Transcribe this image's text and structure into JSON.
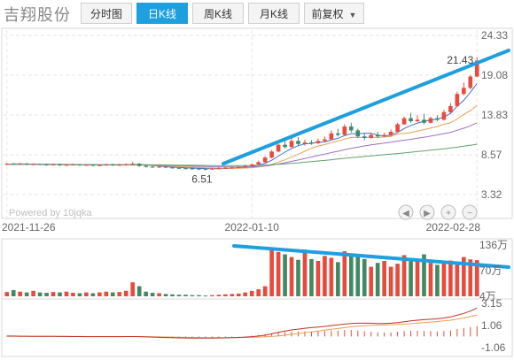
{
  "header": {
    "stock_name": "吉翔股份",
    "tabs": [
      {
        "label": "分时图",
        "active": false
      },
      {
        "label": "日K线",
        "active": true
      },
      {
        "label": "周K线",
        "active": false
      },
      {
        "label": "月K线",
        "active": false
      },
      {
        "label": "前复权",
        "active": false,
        "dropdown": true
      }
    ]
  },
  "colors": {
    "up": "#e84a3c",
    "down": "#3f8a62",
    "ma5": "#3f6fd8",
    "ma10": "#e8a050",
    "ma20": "#a070c0",
    "ma60": "#60a070",
    "trend_line": "#1e9fe0",
    "grid": "#e6e6e6",
    "axis_text": "#666666"
  },
  "watermark": "Powered by 10jqka",
  "chart_data": {
    "type": "candlestick",
    "price_axis": {
      "ticks": [
        "24.33",
        "19.08",
        "13.83",
        "8.57",
        "3.32"
      ],
      "range": [
        3.32,
        24.33
      ]
    },
    "x_labels": [
      "2021-11-26",
      "2022-01-10",
      "2022-02-28"
    ],
    "annotations": {
      "high_label": "21.43",
      "low_label": "6.51"
    },
    "volume_axis": {
      "ticks": [
        "136万",
        "70万",
        "4万"
      ],
      "range": [
        4,
        136
      ],
      "unit": "万"
    },
    "macd_axis": {
      "ticks": [
        "3.15",
        "1.06",
        "-1.06"
      ],
      "range": [
        -1.06,
        3.15
      ]
    },
    "candles": [
      [
        7.3,
        7.4,
        7.45,
        7.2
      ],
      [
        7.4,
        7.35,
        7.5,
        7.3
      ],
      [
        7.35,
        7.4,
        7.5,
        7.3
      ],
      [
        7.4,
        7.3,
        7.5,
        7.25
      ],
      [
        7.3,
        7.35,
        7.45,
        7.2
      ],
      [
        7.35,
        7.3,
        7.4,
        7.2
      ],
      [
        7.3,
        7.25,
        7.4,
        7.15
      ],
      [
        7.25,
        7.3,
        7.4,
        7.2
      ],
      [
        7.3,
        7.2,
        7.4,
        7.1
      ],
      [
        7.2,
        7.25,
        7.35,
        7.1
      ],
      [
        7.25,
        7.3,
        7.4,
        7.2
      ],
      [
        7.3,
        7.2,
        7.35,
        7.1
      ],
      [
        7.2,
        7.25,
        7.3,
        7.1
      ],
      [
        7.25,
        7.15,
        7.3,
        7.05
      ],
      [
        7.15,
        7.2,
        7.3,
        7.1
      ],
      [
        7.2,
        7.3,
        7.4,
        7.15
      ],
      [
        7.3,
        7.2,
        7.4,
        7.1
      ],
      [
        7.2,
        7.25,
        7.4,
        7.15
      ],
      [
        7.25,
        7.3,
        7.45,
        7.2
      ],
      [
        7.3,
        7.4,
        7.6,
        7.25
      ],
      [
        7.4,
        7.1,
        7.5,
        7.0
      ],
      [
        7.1,
        7.0,
        7.2,
        6.9
      ],
      [
        7.0,
        6.95,
        7.1,
        6.85
      ],
      [
        6.95,
        7.0,
        7.1,
        6.85
      ],
      [
        7.0,
        6.9,
        7.05,
        6.8
      ],
      [
        6.9,
        6.85,
        7.0,
        6.75
      ],
      [
        6.85,
        6.8,
        6.95,
        6.7
      ],
      [
        6.8,
        6.78,
        6.9,
        6.65
      ],
      [
        6.78,
        6.75,
        6.85,
        6.6
      ],
      [
        6.75,
        6.72,
        6.85,
        6.55
      ],
      [
        6.72,
        6.7,
        6.8,
        6.51
      ],
      [
        6.7,
        6.75,
        6.85,
        6.6
      ],
      [
        6.75,
        6.8,
        6.95,
        6.65
      ],
      [
        6.8,
        6.85,
        7.0,
        6.7
      ],
      [
        6.85,
        6.9,
        7.05,
        6.75
      ],
      [
        6.9,
        6.95,
        7.1,
        6.8
      ],
      [
        6.95,
        7.1,
        7.2,
        6.9
      ],
      [
        7.1,
        7.3,
        7.4,
        7.0
      ],
      [
        7.3,
        7.6,
        7.8,
        7.2
      ],
      [
        7.6,
        8.2,
        8.4,
        7.5
      ],
      [
        8.2,
        9.0,
        9.2,
        8.1
      ],
      [
        9.0,
        9.9,
        10.0,
        8.9
      ],
      [
        9.9,
        9.6,
        10.5,
        9.4
      ],
      [
        9.6,
        10.4,
        10.8,
        9.5
      ],
      [
        10.4,
        10.0,
        10.9,
        9.8
      ],
      [
        10.0,
        10.2,
        10.6,
        9.8
      ],
      [
        10.2,
        10.1,
        10.5,
        9.9
      ],
      [
        10.1,
        10.4,
        10.7,
        10.0
      ],
      [
        10.4,
        10.6,
        11.0,
        10.2
      ],
      [
        10.6,
        11.4,
        11.8,
        10.5
      ],
      [
        11.4,
        11.2,
        12.0,
        11.0
      ],
      [
        11.2,
        12.3,
        12.6,
        11.1
      ],
      [
        12.3,
        11.8,
        12.8,
        11.5
      ],
      [
        11.8,
        11.0,
        12.0,
        10.8
      ],
      [
        11.0,
        10.8,
        11.4,
        10.5
      ],
      [
        10.8,
        11.2,
        11.5,
        10.7
      ],
      [
        11.2,
        11.0,
        11.6,
        10.8
      ],
      [
        11.0,
        11.2,
        11.5,
        10.9
      ],
      [
        11.2,
        11.6,
        11.9,
        11.0
      ],
      [
        11.6,
        12.6,
        12.8,
        11.5
      ],
      [
        12.6,
        13.4,
        13.6,
        12.5
      ],
      [
        13.4,
        13.0,
        14.1,
        12.8
      ],
      [
        13.0,
        13.2,
        13.8,
        12.9
      ],
      [
        13.2,
        12.8,
        14.0,
        12.6
      ],
      [
        12.8,
        13.4,
        13.6,
        12.7
      ],
      [
        13.4,
        13.2,
        13.8,
        13.0
      ],
      [
        13.2,
        14.2,
        14.5,
        13.1
      ],
      [
        14.2,
        15.0,
        15.4,
        14.0
      ],
      [
        15.0,
        16.6,
        16.9,
        14.9
      ],
      [
        16.6,
        17.4,
        18.1,
        16.4
      ],
      [
        17.4,
        18.9,
        19.1,
        17.2
      ],
      [
        18.9,
        21.0,
        21.43,
        18.8
      ]
    ],
    "moving_averages": [
      {
        "name": "MA5",
        "color": "#3f6fd8",
        "values": [
          7.35,
          7.36,
          7.37,
          7.36,
          7.35,
          7.34,
          7.32,
          7.3,
          7.28,
          7.27,
          7.26,
          7.26,
          7.25,
          7.24,
          7.22,
          7.22,
          7.23,
          7.23,
          7.25,
          7.27,
          7.25,
          7.21,
          7.14,
          7.09,
          7.0,
          6.94,
          6.9,
          6.86,
          6.82,
          6.78,
          6.75,
          6.74,
          6.75,
          6.76,
          6.8,
          6.85,
          6.92,
          7.03,
          7.19,
          7.45,
          7.85,
          8.4,
          8.92,
          9.4,
          9.78,
          10.02,
          10.08,
          10.22,
          10.26,
          10.54,
          10.74,
          11.1,
          11.34,
          11.34,
          11.42,
          11.42,
          11.16,
          11.04,
          11.16,
          11.52,
          12.04,
          12.44,
          12.76,
          13.0,
          13.16,
          13.28,
          13.56,
          14.04,
          14.98,
          15.76,
          16.82,
          17.98
        ]
      },
      {
        "name": "MA10",
        "color": "#e8a050",
        "values": [
          7.34,
          7.35,
          7.35,
          7.35,
          7.34,
          7.33,
          7.32,
          7.31,
          7.3,
          7.29,
          7.28,
          7.27,
          7.26,
          7.25,
          7.24,
          7.23,
          7.22,
          7.22,
          7.22,
          7.23,
          7.22,
          7.2,
          7.17,
          7.14,
          7.11,
          7.07,
          7.02,
          6.98,
          6.94,
          6.9,
          6.86,
          6.83,
          6.8,
          6.79,
          6.79,
          6.8,
          6.82,
          6.87,
          6.96,
          7.1,
          7.3,
          7.59,
          7.91,
          8.27,
          8.64,
          9.04,
          9.44,
          9.73,
          9.92,
          10.2,
          10.38,
          10.65,
          10.86,
          10.88,
          10.86,
          10.86,
          10.86,
          10.92,
          11.0,
          11.31,
          11.4,
          11.5,
          11.7,
          11.9,
          12.1,
          12.3,
          12.6,
          12.8,
          13.3,
          13.9,
          14.4,
          15.1
        ]
      },
      {
        "name": "MA20",
        "color": "#a070c0",
        "values": [
          7.32,
          7.32,
          7.33,
          7.33,
          7.33,
          7.32,
          7.32,
          7.31,
          7.31,
          7.3,
          7.3,
          7.29,
          7.29,
          7.28,
          7.28,
          7.27,
          7.27,
          7.26,
          7.26,
          7.26,
          7.25,
          7.24,
          7.23,
          7.22,
          7.2,
          7.18,
          7.15,
          7.12,
          7.09,
          7.06,
          7.03,
          7.0,
          6.98,
          6.97,
          6.96,
          6.96,
          6.97,
          6.99,
          7.03,
          7.1,
          7.2,
          7.35,
          7.52,
          7.7,
          7.88,
          8.07,
          8.28,
          8.48,
          8.66,
          8.86,
          9.04,
          9.24,
          9.42,
          9.58,
          9.74,
          9.88,
          10.0,
          10.12,
          10.24,
          10.38,
          10.5,
          10.62,
          10.76,
          10.9,
          11.04,
          11.2,
          11.36,
          11.54,
          11.8,
          12.08,
          12.4,
          12.8
        ]
      },
      {
        "name": "MA60",
        "color": "#60a070",
        "values": [
          7.3,
          7.3,
          7.3,
          7.3,
          7.3,
          7.29,
          7.29,
          7.29,
          7.29,
          7.28,
          7.28,
          7.28,
          7.28,
          7.27,
          7.27,
          7.27,
          7.26,
          7.26,
          7.26,
          7.25,
          7.25,
          7.25,
          7.24,
          7.24,
          7.23,
          7.22,
          7.21,
          7.2,
          7.19,
          7.18,
          7.17,
          7.16,
          7.15,
          7.15,
          7.15,
          7.15,
          7.16,
          7.17,
          7.19,
          7.22,
          7.26,
          7.31,
          7.37,
          7.44,
          7.51,
          7.59,
          7.67,
          7.75,
          7.83,
          7.92,
          8.01,
          8.1,
          8.19,
          8.27,
          8.35,
          8.43,
          8.51,
          8.58,
          8.66,
          8.74,
          8.82,
          8.91,
          9.0,
          9.09,
          9.18,
          9.27,
          9.37,
          9.47,
          9.58,
          9.7,
          9.83,
          9.97
        ]
      }
    ],
    "volume": [
      15,
      20,
      16,
      14,
      18,
      14,
      13,
      15,
      14,
      16,
      13,
      12,
      14,
      12,
      14,
      16,
      14,
      15,
      18,
      40,
      30,
      16,
      13,
      12,
      10,
      9,
      8,
      8,
      7,
      7,
      6,
      7,
      8,
      9,
      10,
      11,
      14,
      18,
      22,
      30,
      130,
      118,
      112,
      105,
      98,
      124,
      100,
      95,
      108,
      103,
      92,
      120,
      110,
      108,
      100,
      80,
      90,
      95,
      80,
      88,
      110,
      94,
      100,
      112,
      90,
      85,
      94,
      96,
      92,
      105,
      99,
      97
    ],
    "macd": {
      "hist": [
        0.05,
        0.05,
        0.04,
        0.03,
        0.03,
        0.02,
        0.01,
        0,
        -0.01,
        -0.01,
        -0.02,
        -0.03,
        -0.03,
        -0.04,
        -0.04,
        -0.03,
        -0.03,
        -0.02,
        -0.02,
        -0.01,
        -0.05,
        -0.08,
        -0.1,
        -0.12,
        -0.14,
        -0.15,
        -0.16,
        -0.16,
        -0.15,
        -0.14,
        -0.13,
        -0.11,
        -0.09,
        -0.07,
        -0.05,
        -0.02,
        0.02,
        0.08,
        0.15,
        0.22,
        0.3,
        0.38,
        0.42,
        0.45,
        0.48,
        0.5,
        0.49,
        0.5,
        0.52,
        0.56,
        0.58,
        0.62,
        0.62,
        0.56,
        0.48,
        0.45,
        0.4,
        0.38,
        0.38,
        0.45,
        0.52,
        0.55,
        0.55,
        0.52,
        0.5,
        0.48,
        0.52,
        0.58,
        0.7,
        0.8,
        0.9,
        1.0
      ],
      "dif": [
        0.04,
        0.04,
        0.03,
        0.03,
        0.02,
        0.02,
        0.01,
        0.01,
        0,
        0,
        -0.01,
        -0.01,
        -0.02,
        -0.02,
        -0.02,
        -0.02,
        -0.02,
        -0.02,
        -0.01,
        -0.01,
        -0.02,
        -0.04,
        -0.06,
        -0.08,
        -0.1,
        -0.12,
        -0.13,
        -0.14,
        -0.15,
        -0.15,
        -0.16,
        -0.15,
        -0.14,
        -0.13,
        -0.11,
        -0.09,
        -0.06,
        -0.02,
        0.04,
        0.12,
        0.25,
        0.4,
        0.52,
        0.62,
        0.7,
        0.78,
        0.84,
        0.9,
        0.96,
        1.04,
        1.1,
        1.18,
        1.24,
        1.26,
        1.26,
        1.26,
        1.24,
        1.24,
        1.26,
        1.32,
        1.4,
        1.48,
        1.55,
        1.6,
        1.64,
        1.68,
        1.76,
        1.86,
        2.02,
        2.2,
        2.42,
        2.7
      ],
      "dea": [
        0.02,
        0.02,
        0.02,
        0.02,
        0.02,
        0.02,
        0.01,
        0.01,
        0.01,
        0.01,
        0,
        0,
        -0.01,
        -0.01,
        -0.01,
        -0.01,
        -0.01,
        -0.01,
        -0.01,
        -0.01,
        -0.01,
        -0.02,
        -0.03,
        -0.04,
        -0.05,
        -0.06,
        -0.07,
        -0.08,
        -0.09,
        -0.1,
        -0.11,
        -0.11,
        -0.11,
        -0.11,
        -0.11,
        -0.1,
        -0.09,
        -0.08,
        -0.06,
        -0.03,
        0,
        0.05,
        0.12,
        0.2,
        0.28,
        0.36,
        0.44,
        0.52,
        0.6,
        0.68,
        0.76,
        0.84,
        0.92,
        0.98,
        1.02,
        1.05,
        1.08,
        1.1,
        1.12,
        1.15,
        1.18,
        1.22,
        1.27,
        1.32,
        1.37,
        1.42,
        1.48,
        1.55,
        1.64,
        1.76,
        1.9,
        2.05
      ]
    }
  }
}
